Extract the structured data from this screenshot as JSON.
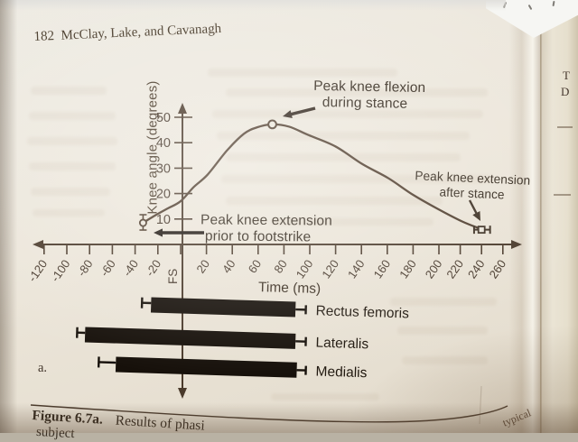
{
  "page": {
    "header": "182  McClay, Lake, and Cavanagh",
    "figure_label": "a.",
    "caption_bold": "Figure 6.7a.",
    "caption_text": "Results of phasi",
    "caption_line2": "subject",
    "caption_fragment_right": "typical",
    "next_page_fragments": [
      "T",
      "D"
    ]
  },
  "chart_data": {
    "type": "line",
    "title": "",
    "xlabel": "Time (ms)",
    "ylabel": "Knee angle (degrees)",
    "x_tick_values": [
      -120,
      -100,
      -80,
      -60,
      -40,
      -20,
      0,
      20,
      40,
      60,
      80,
      100,
      120,
      140,
      160,
      180,
      200,
      220,
      240,
      260
    ],
    "x_tick_labels": [
      "-120",
      "-100",
      "-80",
      "-60",
      "-40",
      "-20",
      "FS",
      "20",
      "40",
      "60",
      "80",
      "100",
      "120",
      "140",
      "160",
      "180",
      "200",
      "220",
      "240",
      "260"
    ],
    "footstrike_label": "FS",
    "y_ticks": [
      10,
      20,
      30,
      40,
      50
    ],
    "xlim": [
      -130,
      275
    ],
    "ylim": [
      0,
      55
    ],
    "ink_color": "#4a3a2b",
    "bar_color": "#16100a",
    "series": [
      {
        "name": "Knee angle",
        "points": [
          [
            -33,
            8.5
          ],
          [
            -24,
            11
          ],
          [
            -12,
            14
          ],
          [
            0,
            17
          ],
          [
            10,
            22.5
          ],
          [
            21,
            27.5
          ],
          [
            36,
            37
          ],
          [
            49,
            43.5
          ],
          [
            59,
            46
          ],
          [
            71,
            47.2
          ],
          [
            84,
            46.3
          ],
          [
            99,
            43
          ],
          [
            120,
            38.5
          ],
          [
            141,
            31.5
          ],
          [
            161,
            26
          ],
          [
            180,
            19.5
          ],
          [
            199,
            14
          ],
          [
            222,
            9
          ],
          [
            240,
            6
          ]
        ]
      }
    ],
    "markers": [
      {
        "type": "open-circle-whiskered",
        "x": -33,
        "y": 8.5,
        "meaning": "peak knee extension prior to footstrike"
      },
      {
        "type": "open-circle",
        "x": 71,
        "y": 47.2,
        "meaning": "peak knee flexion during stance"
      },
      {
        "type": "open-square-whiskered",
        "x": 240,
        "y": 5.8,
        "x_whiskers": [
          233,
          248
        ],
        "meaning": "peak knee extension after stance"
      }
    ],
    "annotations": [
      {
        "line1": "Peak knee flexion",
        "line2": "during stance"
      },
      {
        "line1": "Peak knee extension",
        "line2": "prior to footstrike"
      },
      {
        "line1": "Peak knee extension",
        "line2": "after stance"
      }
    ],
    "emg_bars": [
      {
        "label": "Rectus femoris",
        "onset": -26,
        "offset": 89,
        "whisker_low": -34,
        "whisker_high": 97
      },
      {
        "label": "Lateralis",
        "onset": -84,
        "offset": 89,
        "whisker_low": -91,
        "whisker_high": 97
      },
      {
        "label": "Medialis",
        "onset": -57,
        "offset": 90,
        "whisker_low": -72,
        "whisker_high": 97
      }
    ]
  }
}
